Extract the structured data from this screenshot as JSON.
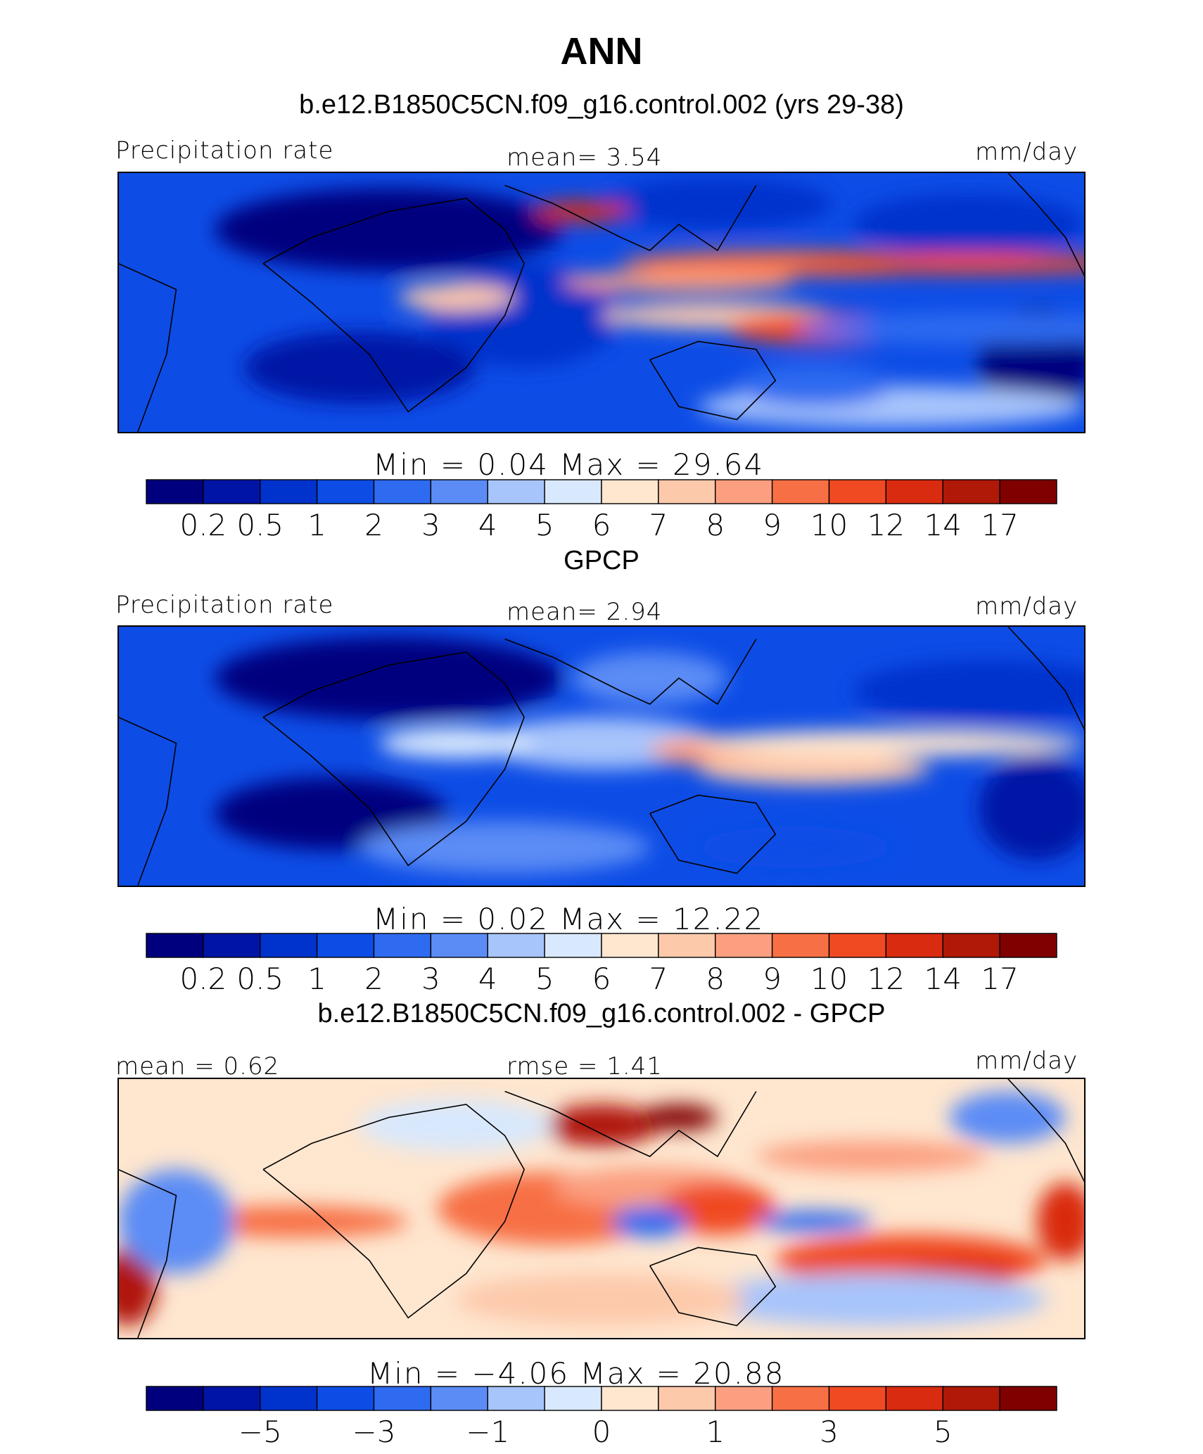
{
  "figure_title": "ANN",
  "colors": {
    "seq_palette": [
      "#00007f",
      "#0014a6",
      "#0033cc",
      "#0d4de6",
      "#2e6bf0",
      "#5b8cf5",
      "#a7c4fb",
      "#d8e8fd",
      "#fee6cf",
      "#fdc9ab",
      "#fb9f80",
      "#f77045",
      "#f04a22",
      "#d92b10",
      "#b01808",
      "#800000"
    ],
    "div_palette": [
      "#00007f",
      "#0014a6",
      "#0033cc",
      "#0d4de6",
      "#2e6bf0",
      "#5b8cf5",
      "#a7c4fb",
      "#d8e8fd",
      "#fee6cf",
      "#fdc9ab",
      "#fb9f80",
      "#f77045",
      "#f04a22",
      "#d92b10",
      "#b01808",
      "#800000"
    ]
  },
  "chart_data": [
    {
      "type": "heatmap",
      "title": "b.e12.B1850C5CN.f09_g16.control.002 (yrs 29-38)",
      "left_label": "Precipitation rate",
      "center_label": "mean=    3.54",
      "units": "mm/day",
      "minmax_label": "Min  =     0.04  Max  =    29.64",
      "colorbar_ticks": [
        "0.2",
        "0.5",
        "1",
        "2",
        "3",
        "4",
        "5",
        "6",
        "7",
        "8",
        "9",
        "10",
        "12",
        "14",
        "17"
      ],
      "mean": 3.54,
      "min": 0.04,
      "max": 29.64
    },
    {
      "type": "heatmap",
      "title": "GPCP",
      "left_label": "Precipitation rate",
      "center_label": "mean=    2.94",
      "units": "mm/day",
      "minmax_label": "Min  =     0.02  Max  =    12.22",
      "colorbar_ticks": [
        "0.2",
        "0.5",
        "1",
        "2",
        "3",
        "4",
        "5",
        "6",
        "7",
        "8",
        "9",
        "10",
        "12",
        "14",
        "17"
      ],
      "mean": 2.94,
      "min": 0.02,
      "max": 12.22
    },
    {
      "type": "heatmap",
      "title": "b.e12.B1850C5CN.f09_g16.control.002 - GPCP",
      "left_label": "mean  =    0.62",
      "center_label": "rmse  =    1.41",
      "units": "mm/day",
      "minmax_label": "Min  =   −4.06  Max  =    20.88",
      "colorbar_ticks": [
        "−5",
        "",
        "−3",
        "",
        "−1",
        "",
        "0",
        "",
        "1",
        "",
        "3",
        "",
        "5"
      ],
      "mean": 0.62,
      "rmse": 1.41,
      "min": -4.06,
      "max": 20.88
    }
  ]
}
